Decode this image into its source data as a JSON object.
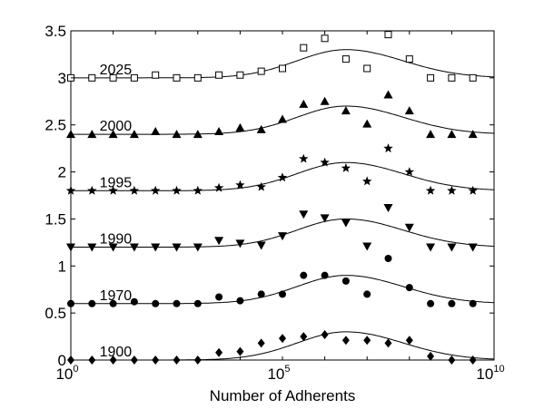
{
  "chart_data": {
    "type": "scatter",
    "title": "",
    "xlabel": "Number of Adherents",
    "ylabel": "",
    "x_scale": "log",
    "xlim": [
      1,
      10000000000
    ],
    "ylim": [
      0,
      3.5
    ],
    "x_ticks": [
      {
        "value": 1,
        "base": "10",
        "exp": "0"
      },
      {
        "value": 100000,
        "base": "10",
        "exp": "5"
      },
      {
        "value": 10000000000,
        "base": "10",
        "exp": "10"
      }
    ],
    "y_ticks": [
      {
        "value": 0,
        "label": "0"
      },
      {
        "value": 0.5,
        "label": "0.5"
      },
      {
        "value": 1,
        "label": "1"
      },
      {
        "value": 1.5,
        "label": "1.5"
      },
      {
        "value": 2,
        "label": "2"
      },
      {
        "value": 2.5,
        "label": "2.5"
      },
      {
        "value": 3,
        "label": "3"
      },
      {
        "value": 3.5,
        "label": "3.5"
      }
    ],
    "grid": false,
    "series": [
      {
        "name": "1900",
        "marker": "diamond",
        "offset": 0,
        "x": [
          1,
          3.16,
          10,
          31.6,
          100,
          316,
          1000,
          3160,
          10000,
          31600,
          100000,
          316000,
          1000000,
          3160000,
          10000000,
          31600000,
          100000000,
          316000000,
          1000000000,
          3160000000
        ],
        "y": [
          0,
          0,
          0,
          0,
          0,
          0,
          0,
          0.08,
          0.09,
          0.18,
          0.23,
          0.25,
          0.27,
          0.21,
          0.21,
          0.18,
          0.21,
          0.04,
          0.0,
          0.0
        ]
      },
      {
        "name": "1970",
        "marker": "circle",
        "offset": 0.6,
        "x": [
          1,
          3.16,
          10,
          31.6,
          100,
          316,
          1000,
          3160,
          10000,
          31600,
          100000,
          316000,
          1000000,
          3160000,
          10000000,
          31600000,
          100000000,
          316000000,
          1000000000,
          3160000000
        ],
        "y": [
          0.6,
          0.6,
          0.6,
          0.62,
          0.6,
          0.6,
          0.6,
          0.67,
          0.63,
          0.7,
          0.7,
          0.9,
          0.9,
          0.84,
          0.7,
          1.08,
          0.77,
          0.6,
          0.6,
          0.6
        ]
      },
      {
        "name": "1990",
        "marker": "triangle-down",
        "offset": 1.2,
        "x": [
          1,
          3.16,
          10,
          31.6,
          100,
          316,
          1000,
          3160,
          10000,
          31600,
          100000,
          316000,
          1000000,
          3160000,
          10000000,
          31600000,
          100000000,
          316000000,
          1000000000,
          3160000000
        ],
        "y": [
          1.2,
          1.2,
          1.2,
          1.2,
          1.2,
          1.2,
          1.2,
          1.27,
          1.24,
          1.22,
          1.32,
          1.55,
          1.51,
          1.46,
          1.21,
          1.62,
          1.41,
          1.2,
          1.2,
          1.2
        ]
      },
      {
        "name": "1995",
        "marker": "star",
        "offset": 1.8,
        "x": [
          1,
          3.16,
          10,
          31.6,
          100,
          316,
          1000,
          3160,
          10000,
          31600,
          100000,
          316000,
          1000000,
          3160000,
          10000000,
          31600000,
          100000000,
          316000000,
          1000000000,
          3160000000
        ],
        "y": [
          1.8,
          1.8,
          1.8,
          1.8,
          1.8,
          1.8,
          1.8,
          1.83,
          1.86,
          1.84,
          1.94,
          2.14,
          2.1,
          2.04,
          1.9,
          2.25,
          2.0,
          1.8,
          1.8,
          1.8
        ]
      },
      {
        "name": "2000",
        "marker": "triangle-up",
        "offset": 2.4,
        "x": [
          1,
          3.16,
          10,
          31.6,
          100,
          316,
          1000,
          3160,
          10000,
          31600,
          100000,
          316000,
          1000000,
          3160000,
          10000000,
          31600000,
          100000000,
          316000000,
          1000000000,
          3160000000
        ],
        "y": [
          2.4,
          2.4,
          2.4,
          2.4,
          2.43,
          2.4,
          2.4,
          2.43,
          2.47,
          2.45,
          2.56,
          2.72,
          2.75,
          2.65,
          2.51,
          2.82,
          2.65,
          2.4,
          2.4,
          2.4
        ]
      },
      {
        "name": "2025",
        "marker": "square-open",
        "offset": 3.0,
        "x": [
          1,
          3.16,
          10,
          31.6,
          100,
          316,
          1000,
          3160,
          10000,
          31600,
          100000,
          316000,
          1000000,
          3160000,
          10000000,
          31600000,
          100000000,
          316000000,
          1000000000,
          3160000000
        ],
        "y": [
          3.0,
          3.0,
          3.0,
          3.0,
          3.03,
          3.0,
          3.0,
          3.03,
          3.03,
          3.07,
          3.1,
          3.32,
          3.42,
          3.2,
          3.1,
          3.46,
          3.2,
          3.0,
          3.0,
          3.0
        ]
      }
    ],
    "fit": {
      "shape": "log-normal bump",
      "peak_x": 3160000,
      "peak_height": 0.3,
      "tail_height": 0.03
    }
  }
}
